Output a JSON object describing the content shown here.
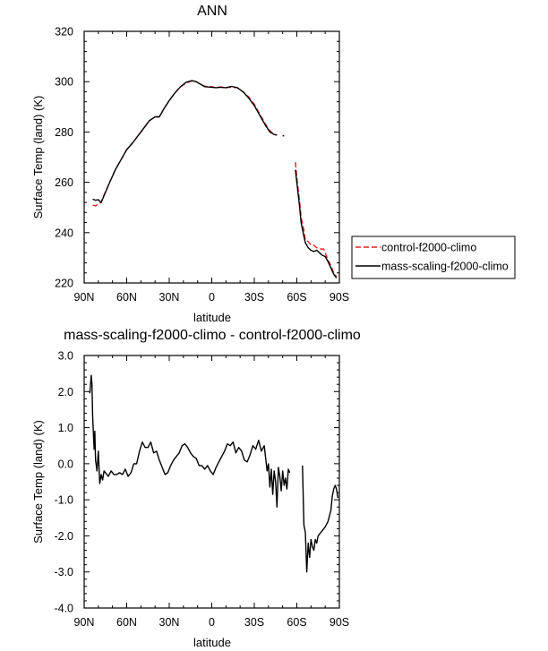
{
  "chart_data": [
    {
      "type": "line",
      "title": "ANN",
      "xlabel": "latitude",
      "ylabel": "Surface Temp (land) (K)",
      "xlim": [
        90,
        -90
      ],
      "ylim": [
        220,
        320
      ],
      "xticks": [
        90,
        60,
        30,
        0,
        -30,
        -60,
        -90
      ],
      "xtick_labels": [
        "90N",
        "60N",
        "30N",
        "0",
        "30S",
        "60S",
        "90S"
      ],
      "yticks": [
        220,
        240,
        260,
        280,
        300,
        320
      ],
      "ytick_labels": [
        "220",
        "240",
        "260",
        "280",
        "300",
        "320"
      ],
      "grid": false,
      "legend": "right-outside",
      "series": [
        {
          "name": "control-f2000-climo",
          "color": "#e02020",
          "dash": "dashed",
          "segments": [
            [
              [
                84,
                251
              ],
              [
                82,
                250.6
              ],
              [
                80,
                251.4
              ],
              [
                78,
                252
              ],
              [
                76,
                255
              ],
              [
                72,
                260
              ],
              [
                68,
                265
              ],
              [
                64,
                269
              ],
              [
                60,
                273
              ],
              [
                56,
                275.5
              ],
              [
                52,
                278.5
              ],
              [
                48,
                281.5
              ],
              [
                44,
                284.5
              ],
              [
                40,
                286
              ],
              [
                37,
                286
              ],
              [
                34,
                289
              ],
              [
                30,
                292.5
              ],
              [
                26,
                295.5
              ],
              [
                22,
                298
              ],
              [
                18,
                299.5
              ],
              [
                14,
                300.3
              ],
              [
                11,
                300
              ],
              [
                8,
                299
              ],
              [
                5,
                298.2
              ],
              [
                0,
                298
              ],
              [
                -3,
                297.6
              ],
              [
                -6,
                297.9
              ],
              [
                -10,
                297.6
              ],
              [
                -14,
                297.8
              ],
              [
                -18,
                297.6
              ],
              [
                -22,
                296
              ],
              [
                -26,
                294
              ],
              [
                -30,
                291
              ],
              [
                -34,
                287
              ],
              [
                -38,
                283
              ],
              [
                -41,
                280.5
              ],
              [
                -44,
                279
              ],
              [
                -46,
                278.8
              ]
            ],
            [
              [
                -50,
                278.5
              ],
              [
                -51,
                278.5
              ]
            ],
            [
              [
                -59,
                268
              ],
              [
                -60,
                262
              ],
              [
                -62,
                252
              ],
              [
                -63,
                246
              ],
              [
                -65,
                241
              ],
              [
                -66,
                237
              ],
              [
                -68,
                236.5
              ],
              [
                -70,
                235
              ],
              [
                -72,
                235
              ],
              [
                -74,
                234
              ],
              [
                -76,
                233.5
              ],
              [
                -78,
                233.5
              ],
              [
                -79,
                233.5
              ],
              [
                -80,
                232
              ],
              [
                -82,
                229
              ],
              [
                -84,
                227
              ],
              [
                -86,
                224
              ],
              [
                -88,
                222.5
              ]
            ]
          ]
        },
        {
          "name": "mass-scaling-f2000-climo",
          "color": "#000000",
          "dash": "solid",
          "segments": [
            [
              [
                84,
                253.3
              ],
              [
                82,
                252.9
              ],
              [
                80,
                253.1
              ],
              [
                78,
                252
              ],
              [
                76,
                254.7
              ],
              [
                72,
                260
              ],
              [
                68,
                265
              ],
              [
                64,
                269
              ],
              [
                60,
                273
              ],
              [
                56,
                275.5
              ],
              [
                52,
                278.5
              ],
              [
                48,
                281.5
              ],
              [
                44,
                284.5
              ],
              [
                40,
                286
              ],
              [
                37,
                286
              ],
              [
                34,
                289
              ],
              [
                30,
                292.5
              ],
              [
                26,
                295.5
              ],
              [
                22,
                298
              ],
              [
                18,
                299.8
              ],
              [
                14,
                300.4
              ],
              [
                11,
                300
              ],
              [
                8,
                299
              ],
              [
                5,
                298
              ],
              [
                0,
                297.8
              ],
              [
                -3,
                297.6
              ],
              [
                -6,
                297.8
              ],
              [
                -10,
                297.6
              ],
              [
                -14,
                298.1
              ],
              [
                -18,
                297.6
              ],
              [
                -22,
                296
              ],
              [
                -26,
                293.5
              ],
              [
                -30,
                290.5
              ],
              [
                -34,
                286.5
              ],
              [
                -38,
                282.5
              ],
              [
                -41,
                280
              ],
              [
                -44,
                279
              ],
              [
                -46,
                278.8
              ]
            ],
            [
              [
                -50,
                278.5
              ],
              [
                -51,
                278.5
              ]
            ],
            [
              [
                -59,
                265
              ],
              [
                -60,
                260
              ],
              [
                -62,
                250
              ],
              [
                -63,
                244
              ],
              [
                -65,
                238.5
              ],
              [
                -66,
                236
              ],
              [
                -68,
                234
              ],
              [
                -70,
                233
              ],
              [
                -72,
                232.5
              ],
              [
                -74,
                233
              ],
              [
                -76,
                232
              ],
              [
                -78,
                231
              ],
              [
                -80,
                230.5
              ],
              [
                -82,
                228.5
              ],
              [
                -84,
                226
              ],
              [
                -86,
                223.5
              ],
              [
                -88,
                222
              ]
            ]
          ]
        }
      ]
    },
    {
      "type": "line",
      "title": "mass-scaling-f2000-climo - control-f2000-climo",
      "xlabel": "latitude",
      "ylabel": "Surface Temp (land) (K)",
      "xlim": [
        90,
        -90
      ],
      "ylim": [
        -4.0,
        3.0
      ],
      "xticks": [
        90,
        60,
        30,
        0,
        -30,
        -60,
        -90
      ],
      "xtick_labels": [
        "90N",
        "60N",
        "30N",
        "0",
        "30S",
        "60S",
        "90S"
      ],
      "yticks": [
        -4,
        -3,
        -2,
        -1,
        0,
        1,
        2,
        3
      ],
      "ytick_labels": [
        "-4.0",
        "-3.0",
        "-2.0",
        "-1.0",
        "0.0",
        "1.0",
        "2.0",
        "3.0"
      ],
      "grid": false,
      "series": [
        {
          "color": "#000000",
          "dash": "solid",
          "segments": [
            [
              [
                86,
                1.95
              ],
              [
                85,
                2.45
              ],
              [
                84.5,
                2.2
              ],
              [
                84,
                1.3
              ],
              [
                83,
                0.4
              ],
              [
                82.5,
                0.9
              ],
              [
                82,
                0.1
              ],
              [
                81,
                -0.2
              ],
              [
                80,
                0.35
              ],
              [
                79,
                -0.55
              ],
              [
                78,
                -0.3
              ],
              [
                77,
                -0.45
              ],
              [
                76,
                -0.2
              ],
              [
                75,
                -0.25
              ],
              [
                73,
                -0.35
              ],
              [
                71,
                -0.2
              ],
              [
                69,
                -0.3
              ],
              [
                67,
                -0.3
              ],
              [
                65,
                -0.25
              ],
              [
                63,
                -0.3
              ],
              [
                61,
                -0.15
              ],
              [
                59,
                -0.35
              ],
              [
                57,
                -0.25
              ],
              [
                55,
                0.0
              ],
              [
                53,
                0.0
              ],
              [
                51,
                0.35
              ],
              [
                49,
                0.6
              ],
              [
                47,
                0.45
              ],
              [
                45,
                0.45
              ],
              [
                43,
                0.6
              ],
              [
                41,
                0.3
              ],
              [
                39,
                0.35
              ],
              [
                37,
                0.1
              ],
              [
                35,
                -0.1
              ],
              [
                33,
                -0.3
              ],
              [
                31,
                -0.25
              ],
              [
                29,
                -0.05
              ],
              [
                27,
                0.1
              ],
              [
                25,
                0.2
              ],
              [
                23,
                0.3
              ],
              [
                21,
                0.5
              ],
              [
                19,
                0.55
              ],
              [
                17,
                0.45
              ],
              [
                15,
                0.3
              ],
              [
                13,
                0.2
              ],
              [
                11,
                0.15
              ],
              [
                9,
                -0.05
              ],
              [
                7,
                -0.05
              ],
              [
                5,
                -0.15
              ],
              [
                3,
                -0.05
              ],
              [
                1,
                -0.2
              ],
              [
                -1,
                -0.3
              ],
              [
                -3,
                -0.1
              ],
              [
                -5,
                0.05
              ],
              [
                -7,
                0.2
              ],
              [
                -9,
                0.35
              ],
              [
                -11,
                0.55
              ],
              [
                -13,
                0.5
              ],
              [
                -15,
                0.6
              ],
              [
                -17,
                0.3
              ],
              [
                -19,
                0.45
              ],
              [
                -21,
                0.35
              ],
              [
                -23,
                0.1
              ],
              [
                -25,
                0.05
              ],
              [
                -27,
                0.25
              ],
              [
                -29,
                0.5
              ],
              [
                -31,
                0.4
              ],
              [
                -33,
                0.65
              ],
              [
                -35,
                0.35
              ],
              [
                -37,
                0.5
              ],
              [
                -39,
                -0.2
              ],
              [
                -40,
                0.0
              ],
              [
                -41,
                -0.65
              ],
              [
                -42,
                -0.15
              ],
              [
                -43,
                -0.85
              ],
              [
                -44,
                -0.2
              ],
              [
                -45,
                -0.5
              ],
              [
                -46,
                -1.2
              ],
              [
                -47,
                -0.1
              ],
              [
                -48,
                -0.35
              ],
              [
                -49,
                -0.75
              ],
              [
                -50,
                -0.2
              ],
              [
                -51,
                -0.6
              ],
              [
                -52,
                -0.4
              ],
              [
                -53,
                -0.7
              ],
              [
                -54,
                -0.15
              ],
              [
                -55,
                -0.25
              ]
            ],
            [
              [
                -64,
                -0.05
              ],
              [
                -65,
                -1.7
              ],
              [
                -66,
                -1.9
              ],
              [
                -67,
                -3.0
              ],
              [
                -68,
                -2.2
              ],
              [
                -69,
                -2.6
              ],
              [
                -70,
                -2.1
              ],
              [
                -71,
                -2.3
              ],
              [
                -72,
                -2.4
              ],
              [
                -73,
                -2.1
              ],
              [
                -74,
                -2.2
              ],
              [
                -75,
                -2.0
              ],
              [
                -76,
                -1.95
              ],
              [
                -78,
                -1.85
              ],
              [
                -80,
                -1.75
              ],
              [
                -82,
                -1.6
              ],
              [
                -84,
                -1.3
              ],
              [
                -85,
                -0.9
              ],
              [
                -86,
                -0.7
              ],
              [
                -87,
                -0.6
              ],
              [
                -88,
                -0.7
              ],
              [
                -89,
                -0.95
              ]
            ]
          ]
        }
      ]
    }
  ]
}
